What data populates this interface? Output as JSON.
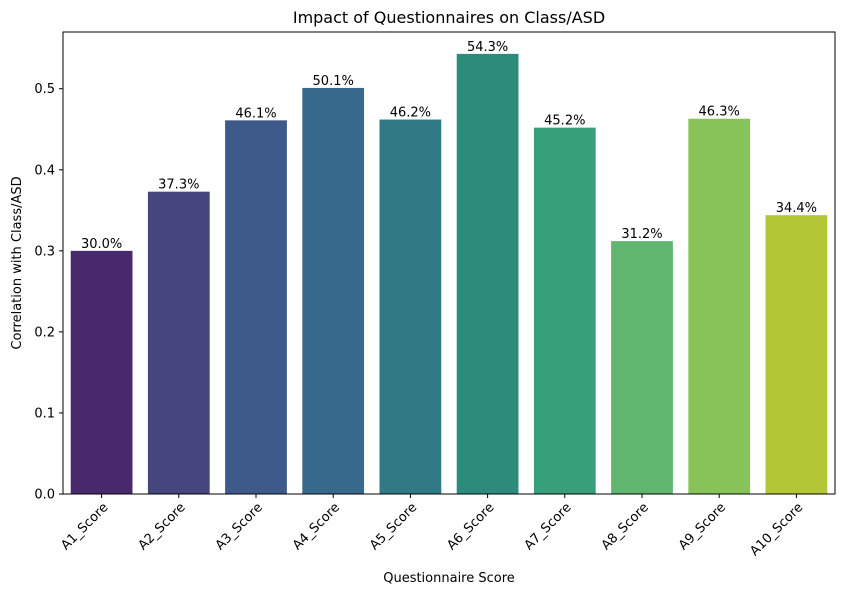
{
  "chart_data": {
    "type": "bar",
    "title": "Impact of Questionnaires on Class/ASD",
    "xlabel": "Questionnaire Score",
    "ylabel": "Correlation with Class/ASD",
    "categories": [
      "A1_Score",
      "A2_Score",
      "A3_Score",
      "A4_Score",
      "A5_Score",
      "A6_Score",
      "A7_Score",
      "A8_Score",
      "A9_Score",
      "A10_Score"
    ],
    "values": [
      0.3,
      0.373,
      0.461,
      0.501,
      0.462,
      0.543,
      0.452,
      0.312,
      0.463,
      0.344
    ],
    "data_labels": [
      "30.0%",
      "37.3%",
      "46.1%",
      "50.1%",
      "46.2%",
      "54.3%",
      "45.2%",
      "31.2%",
      "46.3%",
      "34.4%"
    ],
    "colors": [
      "#482A6C",
      "#46467F",
      "#3E5A8A",
      "#37698C",
      "#2F7A84",
      "#2D8B7C",
      "#37A079",
      "#60B66E",
      "#88C35A",
      "#B2C636"
    ],
    "yticks": [
      "0.0",
      "0.1",
      "0.2",
      "0.3",
      "0.4",
      "0.5"
    ],
    "ylim": [
      0,
      0.57
    ],
    "grid": false,
    "legend": false
  }
}
